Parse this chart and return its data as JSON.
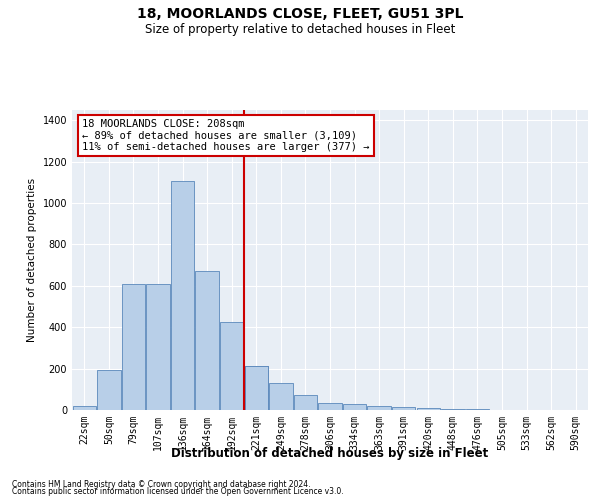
{
  "title1": "18, MOORLANDS CLOSE, FLEET, GU51 3PL",
  "title2": "Size of property relative to detached houses in Fleet",
  "xlabel": "Distribution of detached houses by size in Fleet",
  "ylabel": "Number of detached properties",
  "annotation_line1": "18 MOORLANDS CLOSE: 208sqm",
  "annotation_line2": "← 89% of detached houses are smaller (3,109)",
  "annotation_line3": "11% of semi-detached houses are larger (377) →",
  "bar_labels": [
    "22sqm",
    "50sqm",
    "79sqm",
    "107sqm",
    "136sqm",
    "164sqm",
    "192sqm",
    "221sqm",
    "249sqm",
    "278sqm",
    "306sqm",
    "334sqm",
    "363sqm",
    "391sqm",
    "420sqm",
    "448sqm",
    "476sqm",
    "505sqm",
    "533sqm",
    "562sqm",
    "590sqm"
  ],
  "bar_values": [
    20,
    195,
    610,
    610,
    1105,
    670,
    425,
    215,
    130,
    73,
    33,
    30,
    20,
    15,
    8,
    5,
    3,
    0,
    0,
    0,
    0
  ],
  "bar_color": "#b8cfe8",
  "bar_edge_color": "#5a88bb",
  "highlight_bar_index": 7,
  "vline_color": "#cc0000",
  "ylim": [
    0,
    1450
  ],
  "yticks": [
    0,
    200,
    400,
    600,
    800,
    1000,
    1200,
    1400
  ],
  "bg_color": "#e8eef5",
  "grid_color": "#ffffff",
  "annotation_box_color": "#ffffff",
  "annotation_box_edge": "#cc0000",
  "fig_bg_color": "#ffffff",
  "footer1": "Contains HM Land Registry data © Crown copyright and database right 2024.",
  "footer2": "Contains public sector information licensed under the Open Government Licence v3.0."
}
